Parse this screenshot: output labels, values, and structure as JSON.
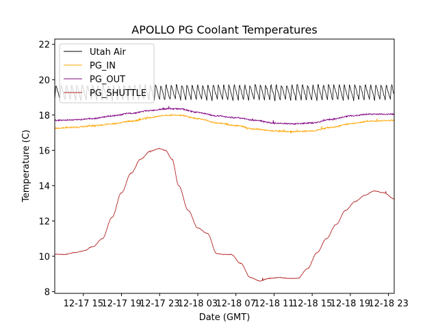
{
  "chart_data": {
    "type": "line",
    "title": "APOLLO PG Coolant Temperatures",
    "xlabel": "Date (GMT)",
    "ylabel": "Temperature (C)",
    "ylim": [
      7.9,
      22.3
    ],
    "xlim_hours": [
      0,
      35.6
    ],
    "x_start_label": "12-17 12:00",
    "yticks": [
      8,
      10,
      12,
      14,
      16,
      18,
      20,
      22
    ],
    "yticklabels": [
      "8",
      "10",
      "12",
      "14",
      "16",
      "18",
      "20",
      "22"
    ],
    "xticks_hours": [
      3,
      7,
      11,
      15,
      19,
      23,
      27,
      31,
      35
    ],
    "xticklabels": [
      "12-17 15",
      "12-17 19",
      "12-17 23",
      "12-18 03",
      "12-18 07",
      "12-18 11",
      "12-18 15",
      "12-18 19",
      "12-18 23"
    ],
    "grid": false,
    "legend": {
      "location": "top-left"
    },
    "series": [
      {
        "name": "Utah Air",
        "color": "#000000",
        "style": "sawtooth",
        "mean": 19.3,
        "amplitude": 0.45,
        "period_hours": 0.55,
        "x_hours": [
          0,
          35.6
        ],
        "values": [
          19.3,
          19.3
        ]
      },
      {
        "name": "PG_IN",
        "color": "#ffa500",
        "x_hours": [
          0,
          2,
          4,
          6,
          8,
          10,
          11.5,
          13,
          15,
          17,
          19,
          21,
          23,
          25,
          27,
          29,
          31,
          33,
          35.6
        ],
        "values": [
          17.25,
          17.3,
          17.38,
          17.5,
          17.65,
          17.85,
          17.98,
          18.0,
          17.8,
          17.55,
          17.4,
          17.2,
          17.1,
          17.05,
          17.1,
          17.3,
          17.5,
          17.65,
          17.7
        ]
      },
      {
        "name": "PG_OUT",
        "color": "#800080",
        "x_hours": [
          0,
          2,
          4,
          6,
          8,
          10,
          11.5,
          13,
          15,
          17,
          19,
          21,
          23,
          25,
          27,
          29,
          31,
          33,
          35.6
        ],
        "values": [
          17.7,
          17.72,
          17.8,
          17.95,
          18.1,
          18.25,
          18.35,
          18.35,
          18.15,
          17.95,
          17.85,
          17.7,
          17.55,
          17.5,
          17.55,
          17.75,
          17.95,
          18.05,
          18.05
        ]
      },
      {
        "name": "PG_SHUTTLE",
        "color": "#b22222",
        "x_hours": [
          0,
          1,
          2,
          3,
          4,
          5,
          6,
          7,
          8,
          9,
          10,
          11,
          11.6,
          12.3,
          13,
          14,
          15,
          16,
          17,
          17.8,
          18.5,
          19.5,
          20.5,
          21.5,
          22.5,
          23.5,
          24.5,
          25.5,
          26.5,
          27.5,
          28.5,
          29.5,
          30.5,
          31.5,
          32.5,
          33.5,
          34.5,
          35.6
        ],
        "values": [
          10.12,
          10.1,
          10.2,
          10.3,
          10.55,
          11.0,
          12.2,
          13.6,
          14.7,
          15.5,
          15.95,
          16.1,
          16.0,
          15.5,
          14.0,
          12.6,
          11.6,
          11.3,
          10.15,
          10.1,
          10.1,
          9.6,
          8.8,
          8.6,
          8.75,
          8.8,
          8.75,
          8.75,
          9.3,
          10.2,
          11.0,
          11.8,
          12.6,
          13.1,
          13.45,
          13.7,
          13.6,
          13.25
        ]
      }
    ]
  }
}
